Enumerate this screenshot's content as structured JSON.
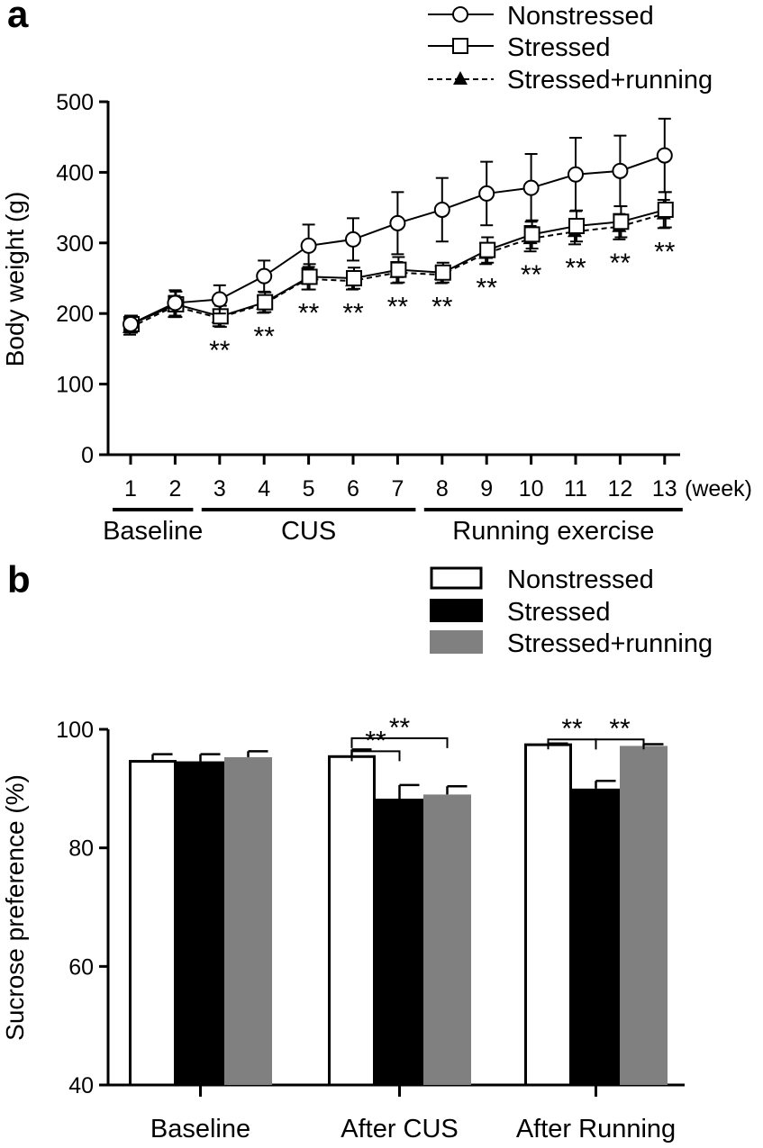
{
  "chart_data": [
    {
      "panel": "a",
      "type": "line",
      "ylabel": "Body weight (g)",
      "x_unit": "(week)",
      "x": [
        1,
        2,
        3,
        4,
        5,
        6,
        7,
        8,
        9,
        10,
        11,
        12,
        13
      ],
      "ylim": [
        0,
        500
      ],
      "yticks": [
        0,
        100,
        200,
        300,
        400,
        500
      ],
      "series": [
        {
          "name": "Nonstressed",
          "marker": "circle",
          "line": "solid",
          "values": [
            185,
            215,
            220,
            253,
            296,
            305,
            328,
            347,
            370,
            378,
            397,
            402,
            424
          ],
          "errors": [
            12,
            18,
            20,
            22,
            30,
            30,
            44,
            45,
            45,
            48,
            52,
            50,
            52
          ]
        },
        {
          "name": "Stressed",
          "marker": "square",
          "line": "solid",
          "values": [
            185,
            213,
            196,
            216,
            252,
            250,
            262,
            258,
            290,
            312,
            324,
            330,
            347
          ],
          "errors": [
            12,
            18,
            15,
            14,
            18,
            15,
            18,
            14,
            18,
            20,
            22,
            22,
            25
          ]
        },
        {
          "name": "Stressed+running",
          "marker": "triangle",
          "line": "dashed",
          "values": [
            180,
            210,
            194,
            213,
            249,
            246,
            258,
            255,
            285,
            306,
            316,
            323,
            341
          ],
          "errors": [
            10,
            15,
            12,
            12,
            15,
            12,
            15,
            12,
            15,
            18,
            18,
            18,
            20
          ]
        }
      ],
      "annotations": [
        {
          "x": 3,
          "text": "**"
        },
        {
          "x": 4,
          "text": "**"
        },
        {
          "x": 5,
          "text": "**"
        },
        {
          "x": 6,
          "text": "**"
        },
        {
          "x": 7,
          "text": "**"
        },
        {
          "x": 8,
          "text": "**"
        },
        {
          "x": 9,
          "text": "**"
        },
        {
          "x": 10,
          "text": "**"
        },
        {
          "x": 11,
          "text": "**"
        },
        {
          "x": 12,
          "text": "**"
        },
        {
          "x": 13,
          "text": "**"
        }
      ],
      "phases": [
        {
          "label": "Baseline",
          "from": 1,
          "to": 2
        },
        {
          "label": "CUS",
          "from": 3,
          "to": 7
        },
        {
          "label": "Running exercise",
          "from": 8,
          "to": 13
        }
      ]
    },
    {
      "panel": "b",
      "type": "bar",
      "ylabel": "Sucrose preference (%)",
      "categories": [
        "Baseline",
        "After CUS",
        "After Running"
      ],
      "ylim": [
        40,
        100
      ],
      "yticks": [
        40,
        60,
        80,
        100
      ],
      "series": [
        {
          "name": "Nonstressed",
          "fill": "#ffffff",
          "values": [
            94.6,
            95.4,
            97.4
          ],
          "errors": [
            1.2,
            1.2,
            0.2
          ]
        },
        {
          "name": "Stressed",
          "fill": "#000000",
          "values": [
            94.6,
            88.3,
            90.0
          ],
          "errors": [
            1.2,
            2.3,
            1.3
          ]
        },
        {
          "name": "Stressed+running",
          "fill": "#808080",
          "values": [
            95.3,
            89.0,
            97.2
          ],
          "errors": [
            1.0,
            1.4,
            0.3
          ]
        }
      ],
      "significance": [
        {
          "group": 1,
          "from": 0,
          "to": 2,
          "text": "**",
          "y": 98.5
        },
        {
          "group": 1,
          "from": 0,
          "to": 1,
          "text": "**",
          "y": 96.3
        },
        {
          "group": 2,
          "from": 0,
          "to": 1,
          "text": "**",
          "y": 98.3
        },
        {
          "group": 2,
          "from": 1,
          "to": 2,
          "text": "**",
          "y": 98.3
        }
      ]
    }
  ]
}
